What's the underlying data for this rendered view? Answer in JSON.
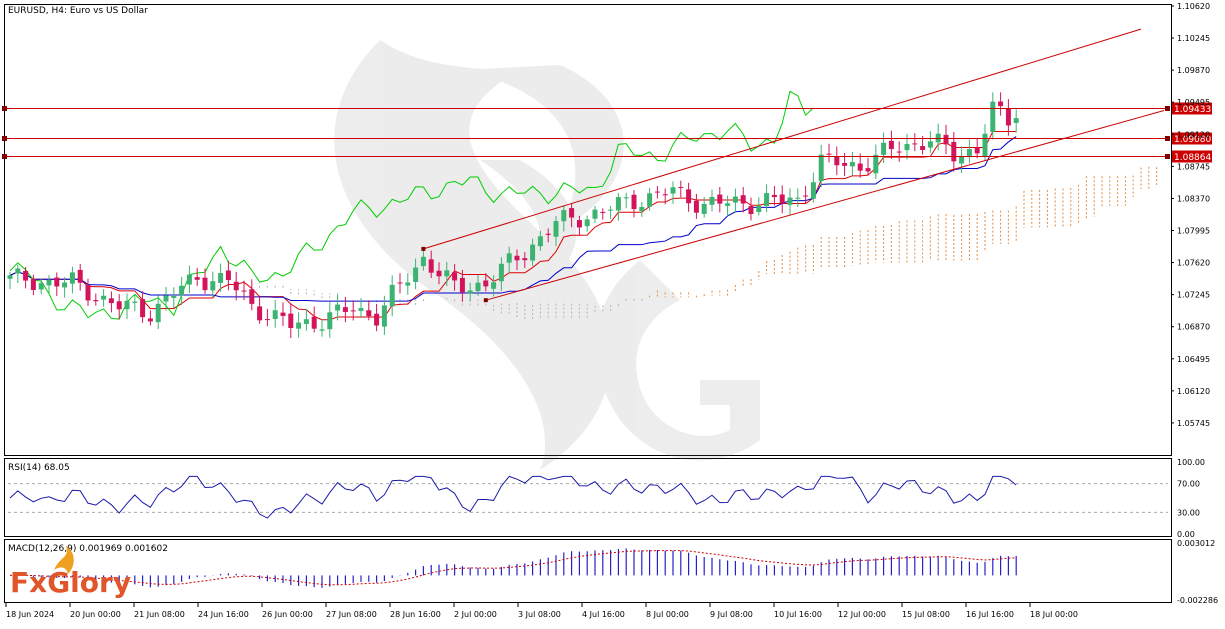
{
  "chart_title": "EURUSD, H4:  Euro vs US Dollar",
  "logo_text": "FxGlory",
  "colors": {
    "bull": "#26a69a",
    "bull_body": "#3cb371",
    "bear": "#d4145a",
    "tenkan": "#dd0000",
    "kijun": "#0000cc",
    "chikou": "#00cc00",
    "cloud_bull": "#e58a3c",
    "cloud_bear": "#b9aec4",
    "trendline": "#cc0000",
    "rsi": "#1a1aaa",
    "macd_hist": "#2222cc",
    "macd_signal": "#cc0000"
  },
  "x_labels": [
    "18 Jun 2024",
    "20 Jun 00:00",
    "21 Jun 08:00",
    "24 Jun 16:00",
    "26 Jun 00:00",
    "27 Jun 08:00",
    "28 Jun 16:00",
    "2 Jul 00:00",
    "3 Jul 08:00",
    "4 Jul 16:00",
    "8 Jul 00:00",
    "9 Jul 08:00",
    "10 Jul 16:00",
    "12 Jul 00:00",
    "15 Jul 08:00",
    "16 Jul 16:00",
    "18 Jul 00:00"
  ],
  "price_axis": {
    "labels": [
      "1.10620",
      "1.10245",
      "1.09870",
      "1.09495",
      "1.09120",
      "1.08745",
      "1.08370",
      "1.07995",
      "1.07620",
      "1.07245",
      "1.06870",
      "1.06495",
      "1.06120",
      "1.05745"
    ],
    "ylim": [
      1.0537,
      1.1062
    ]
  },
  "levels": [
    {
      "value": 1.09433,
      "label": "1.09433"
    },
    {
      "value": 1.0908,
      "label": "1.09080"
    },
    {
      "value": 1.08864,
      "label": "1.08864"
    }
  ],
  "rsi": {
    "label": "RSI(14) 68.05",
    "axis_labels": [
      "100.00",
      "70.00",
      "30.00",
      "0.00"
    ],
    "levels": [
      70,
      30
    ],
    "ylim": [
      0,
      100
    ]
  },
  "macd": {
    "label": "MACD(12,26,9) 0.001969 0.001602",
    "axis_labels": [
      "0.003012",
      "-0.002286"
    ],
    "ylim": [
      -0.002286,
      0.003012
    ]
  },
  "chart_data": {
    "type": "line",
    "title": "EURUSD, H4:  Euro vs US Dollar",
    "candles_count": 130,
    "anchors": [
      {
        "i": 0,
        "price": 1.0742
      },
      {
        "i": 8,
        "price": 1.0738
      },
      {
        "i": 14,
        "price": 1.071
      },
      {
        "i": 18,
        "price": 1.0705
      },
      {
        "i": 24,
        "price": 1.0745
      },
      {
        "i": 28,
        "price": 1.074
      },
      {
        "i": 31,
        "price": 1.0712
      },
      {
        "i": 36,
        "price": 1.0688
      },
      {
        "i": 40,
        "price": 1.0695
      },
      {
        "i": 44,
        "price": 1.0708
      },
      {
        "i": 47,
        "price": 1.07
      },
      {
        "i": 51,
        "price": 1.0745
      },
      {
        "i": 53,
        "price": 1.0768
      },
      {
        "i": 57,
        "price": 1.0732
      },
      {
        "i": 61,
        "price": 1.0738
      },
      {
        "i": 66,
        "price": 1.0775
      },
      {
        "i": 70,
        "price": 1.0808
      },
      {
        "i": 76,
        "price": 1.0822
      },
      {
        "i": 80,
        "price": 1.0835
      },
      {
        "i": 85,
        "price": 1.0845
      },
      {
        "i": 89,
        "price": 1.083
      },
      {
        "i": 94,
        "price": 1.0832
      },
      {
        "i": 101,
        "price": 1.0835
      },
      {
        "i": 104,
        "price": 1.088
      },
      {
        "i": 109,
        "price": 1.0875
      },
      {
        "i": 114,
        "price": 1.0898
      },
      {
        "i": 118,
        "price": 1.0905
      },
      {
        "i": 121,
        "price": 1.0888
      },
      {
        "i": 124,
        "price": 1.0895
      },
      {
        "i": 126,
        "price": 1.094
      },
      {
        "i": 128,
        "price": 1.0928
      },
      {
        "i": 129,
        "price": 1.094
      }
    ],
    "trend_upper": [
      {
        "i": 53,
        "price": 1.0778
      },
      {
        "i": 145,
        "price": 1.1035
      }
    ],
    "trend_lower": [
      {
        "i": 61,
        "price": 1.0718
      },
      {
        "i": 150,
        "price": 1.0945
      }
    ],
    "rsi_values_hint": "oscillates 40-70, ending at 68.05"
  }
}
